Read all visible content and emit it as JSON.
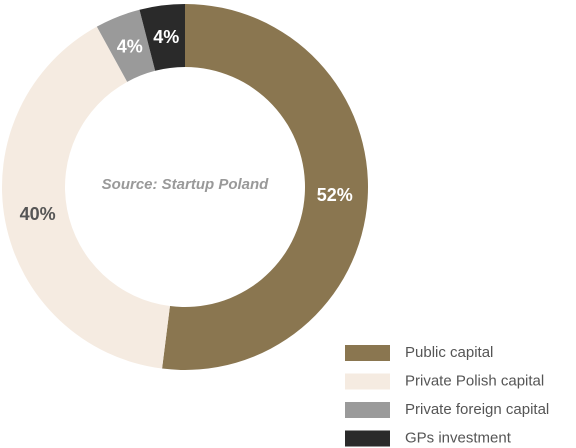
{
  "chart_data": {
    "type": "donut",
    "annotation": "Source: Startup Poland",
    "categories": [
      "Public capital",
      "Private Polish capital",
      "Private foreign capital",
      "GPs investment"
    ],
    "values": [
      52,
      40,
      4,
      4
    ],
    "value_labels": [
      "52%",
      "40%",
      "4%",
      "4%"
    ],
    "colors": [
      "#8a7650",
      "#f5ebe1",
      "#9a9a9a",
      "#2a2a2a"
    ],
    "legend": "bottom-right"
  }
}
